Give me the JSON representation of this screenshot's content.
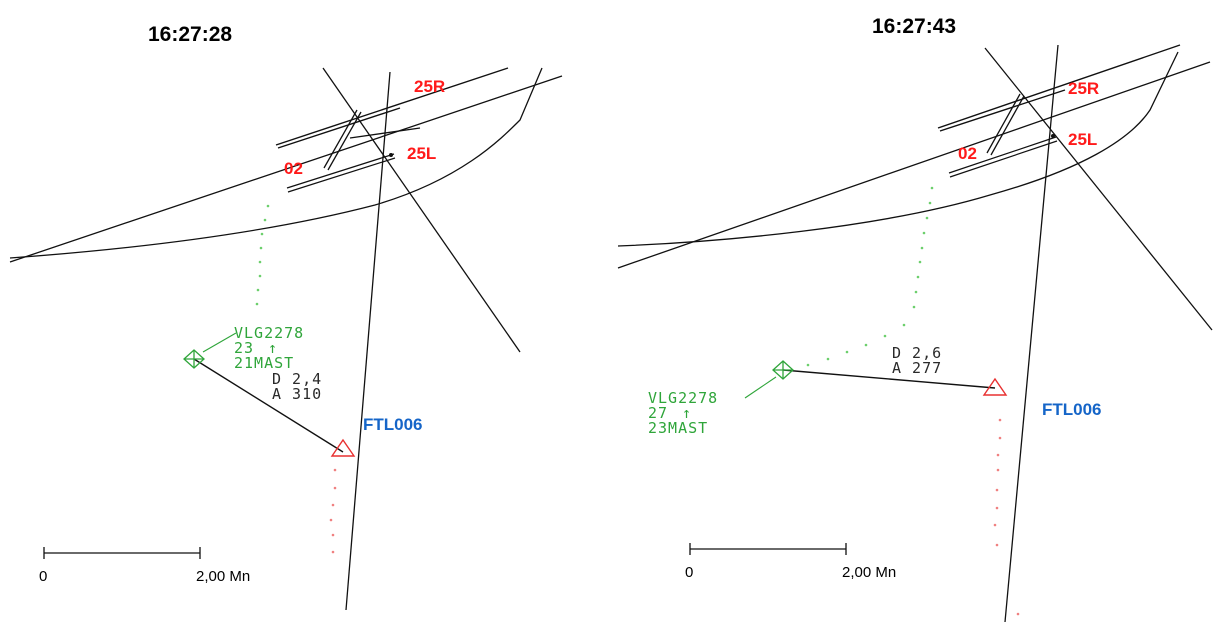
{
  "colors": {
    "runway_label": "#ff1a1a",
    "target_green": "#2fa53a",
    "target_blue": "#1565c8",
    "target_red": "#e83030",
    "distance_text": "#2a2a2a",
    "lines": "#111111"
  },
  "panels": [
    {
      "timestamp": "16:27:28",
      "runways": [
        "25R",
        "25L",
        "02"
      ],
      "aircraft_green": {
        "callsign": "VLG2278",
        "level": "23",
        "trend_arrow": "↑",
        "approach_info": "21MAST",
        "icon": "square-diamond-target-icon"
      },
      "aircraft_blue": {
        "callsign": "FTL006",
        "icon": "red-triangle-target-icon"
      },
      "separation": {
        "distance": "D 2,4",
        "altitude": "A 310"
      },
      "scale": {
        "zero": "0",
        "distance": "2,00 Mn"
      }
    },
    {
      "timestamp": "16:27:43",
      "runways": [
        "25R",
        "25L",
        "02"
      ],
      "aircraft_green": {
        "callsign": "VLG2278",
        "level": "27",
        "trend_arrow": "↑",
        "approach_info": "23MAST",
        "icon": "square-diamond-target-icon"
      },
      "aircraft_blue": {
        "callsign": "FTL006",
        "icon": "red-triangle-target-icon"
      },
      "separation": {
        "distance": "D 2,6",
        "altitude": "A 277"
      },
      "scale": {
        "zero": "0",
        "distance": "2,00 Mn"
      }
    }
  ]
}
